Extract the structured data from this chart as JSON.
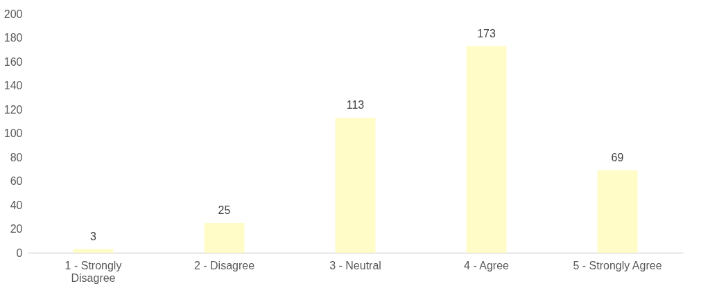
{
  "chart_data": {
    "type": "bar",
    "categories": [
      "1 - Strongly Disagree",
      "2 - Disagree",
      "3 - Neutral",
      "4 - Agree",
      "5 - Strongly Agree"
    ],
    "values": [
      3,
      25,
      113,
      173,
      69
    ],
    "color": "#fffcc8",
    "ylim": [
      0,
      200
    ],
    "yticks": [
      0,
      20,
      40,
      60,
      80,
      100,
      120,
      140,
      160,
      180,
      200
    ],
    "grid": false,
    "data_labels": true
  }
}
